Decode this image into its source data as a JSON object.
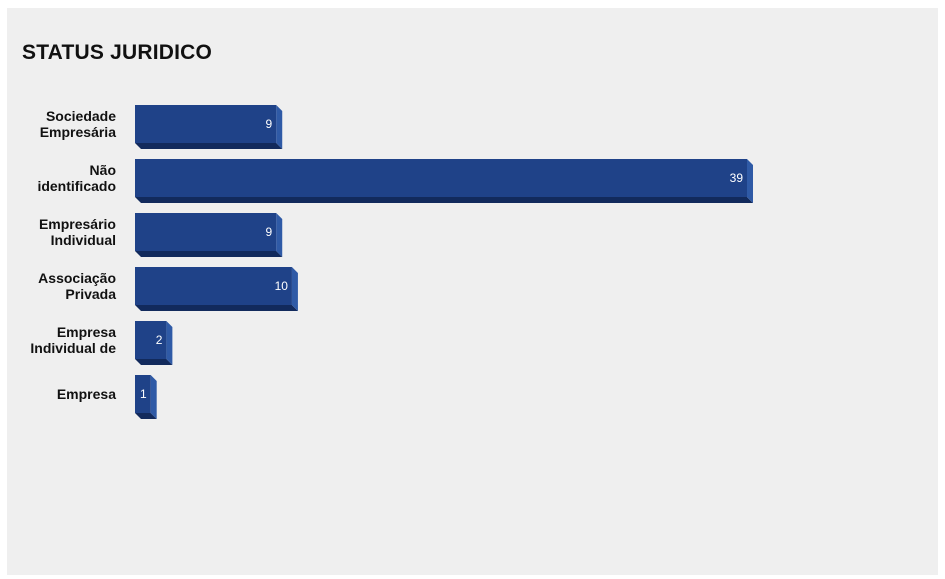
{
  "title": "STATUS JURIDICO",
  "colors": {
    "bar_front": "#1f4288",
    "bar_side": "#2f5aa6",
    "bar_bottom": "#122a5c",
    "panel_bg": "#efefef"
  },
  "chart_data": {
    "type": "bar",
    "orientation": "horizontal",
    "title": "STATUS JURIDICO",
    "categories": [
      [
        "Sociedade",
        "Empresária"
      ],
      [
        "Não",
        "identificado"
      ],
      [
        "Empresário",
        "Individual"
      ],
      [
        "Associação",
        "Privada"
      ],
      [
        "Empresa",
        "Individual de"
      ],
      [
        "Empresa"
      ]
    ],
    "values": [
      9,
      39,
      9,
      10,
      2,
      1
    ],
    "xlim": [
      0,
      39
    ],
    "grid": false,
    "legend": "none"
  }
}
